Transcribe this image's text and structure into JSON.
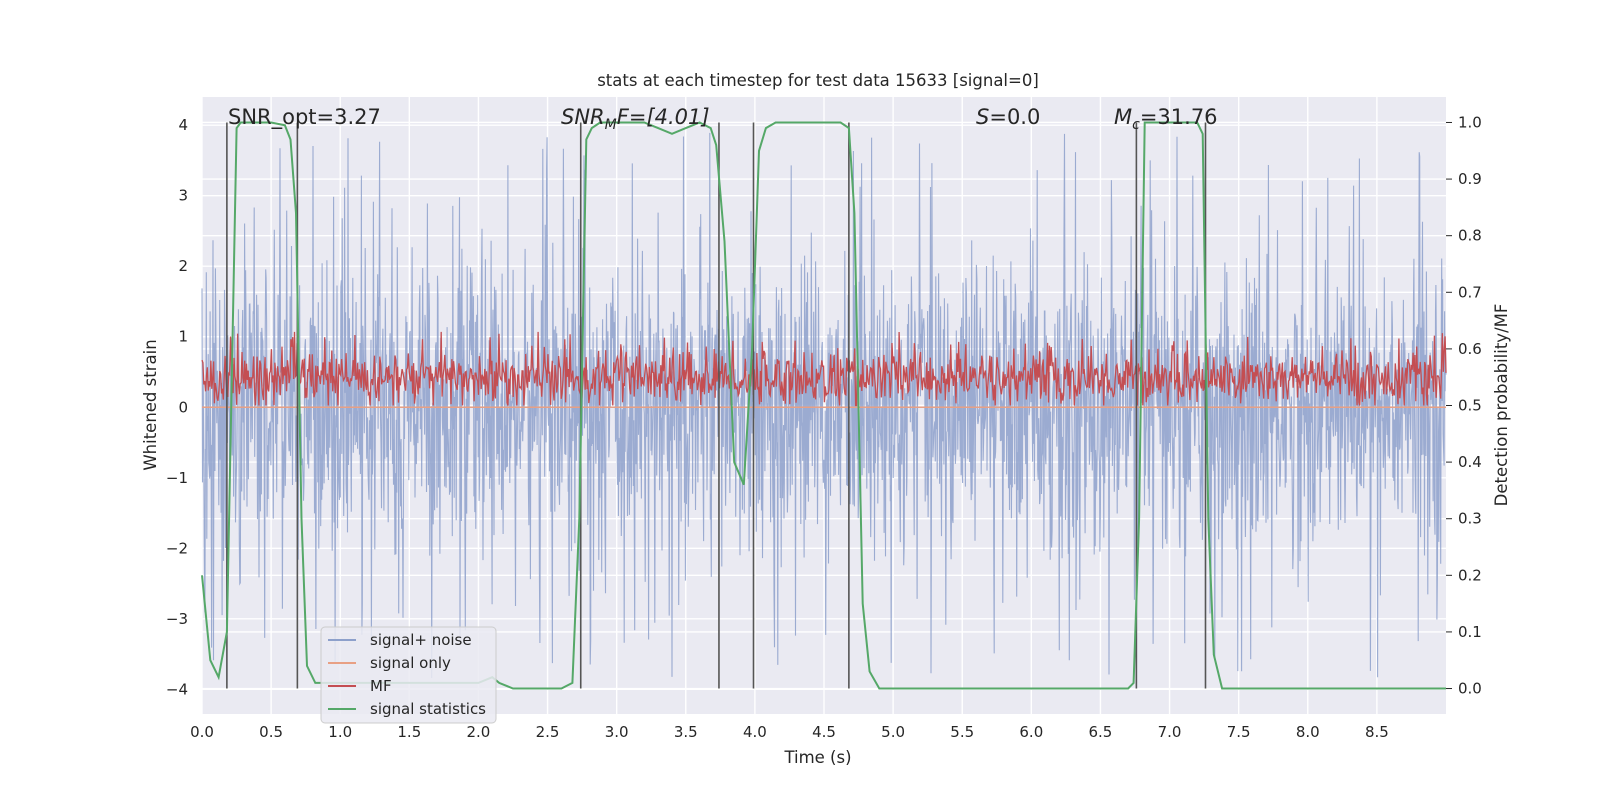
{
  "chart_data": {
    "type": "line",
    "title": "stats at each timestep for test data 15633 [signal=0]",
    "xlabel": "Time (s)",
    "ylabel": "Whitened strain",
    "y2label": "Detection probability/MF",
    "xlim": [
      0.0,
      9.0
    ],
    "ylim": [
      -4.35,
      4.4
    ],
    "y2lim": [
      -0.045,
      1.045
    ],
    "xticks": [
      "0.0",
      "0.5",
      "1.0",
      "1.5",
      "2.0",
      "2.5",
      "3.0",
      "3.5",
      "4.0",
      "4.5",
      "5.0",
      "5.5",
      "6.0",
      "6.5",
      "7.0",
      "7.5",
      "8.0",
      "8.5"
    ],
    "yticks": [
      "4",
      "3",
      "2",
      "1",
      "0",
      "−1",
      "−2",
      "−3",
      "−4"
    ],
    "y2ticks": [
      "1.0",
      "0.9",
      "0.8",
      "0.7",
      "0.6",
      "0.5",
      "0.4",
      "0.3",
      "0.2",
      "0.1",
      "0.0"
    ],
    "grid": true,
    "legend_position": "lower-left",
    "series": [
      {
        "name": "signal+ noise",
        "color": "#8da0cb",
        "axis": "left",
        "style": "dense noise, amplitude about ±2.5 with spikes to ±4"
      },
      {
        "name": "signal only",
        "color": "#e8a084",
        "axis": "left",
        "values_note": "flat at 0"
      },
      {
        "name": "MF",
        "color": "#c44e52",
        "axis": "right",
        "range": [
          0.5,
          0.63
        ]
      },
      {
        "name": "signal statistics",
        "color": "#55a868",
        "axis": "right",
        "x": [
          0.0,
          0.06,
          0.12,
          0.18,
          0.25,
          0.28,
          0.32,
          0.4,
          0.5,
          0.6,
          0.64,
          0.68,
          0.72,
          0.76,
          0.82,
          0.9,
          1.0,
          1.2,
          1.5,
          1.8,
          2.0,
          2.1,
          2.15,
          2.25,
          2.4,
          2.6,
          2.68,
          2.73,
          2.78,
          2.82,
          2.88,
          3.0,
          3.2,
          3.3,
          3.4,
          3.5,
          3.6,
          3.68,
          3.72,
          3.78,
          3.85,
          3.92,
          3.98,
          4.03,
          4.08,
          4.15,
          4.3,
          4.5,
          4.62,
          4.68,
          4.72,
          4.78,
          4.83,
          4.9,
          5.2,
          5.8,
          6.3,
          6.7,
          6.74,
          6.78,
          6.82,
          6.9,
          7.0,
          7.1,
          7.2,
          7.24,
          7.28,
          7.32,
          7.38,
          7.5,
          8.0,
          8.6,
          9.0
        ],
        "values": [
          0.2,
          0.05,
          0.02,
          0.1,
          0.99,
          1.0,
          1.0,
          1.0,
          1.0,
          0.995,
          0.97,
          0.84,
          0.3,
          0.04,
          0.01,
          0.01,
          0.01,
          0.01,
          0.01,
          0.01,
          0.01,
          0.02,
          0.01,
          0.0,
          0.0,
          0.0,
          0.01,
          0.3,
          0.97,
          0.99,
          1.0,
          1.0,
          1.0,
          0.99,
          0.98,
          0.99,
          1.0,
          0.99,
          0.96,
          0.79,
          0.4,
          0.36,
          0.6,
          0.95,
          0.99,
          1.0,
          1.0,
          1.0,
          1.0,
          0.99,
          0.84,
          0.15,
          0.03,
          0.0,
          0.0,
          0.0,
          0.0,
          0.0,
          0.01,
          0.3,
          1.0,
          1.0,
          1.0,
          1.0,
          1.0,
          0.98,
          0.3,
          0.06,
          0.0,
          0.0,
          0.0,
          0.0,
          0.0
        ]
      }
    ],
    "vlines_x": [
      0.18,
      0.69,
      2.74,
      3.74,
      3.99,
      4.68,
      6.76,
      7.26
    ],
    "annotations": [
      {
        "text": "SNR_opt=3.27"
      },
      {
        "text": "F=[4.01]",
        "prefix": "SNR",
        "sub": "M"
      },
      {
        "text": "=0.0",
        "prefix": "S"
      },
      {
        "text": "=31.76",
        "prefix": "M",
        "sub": "c"
      }
    ]
  }
}
